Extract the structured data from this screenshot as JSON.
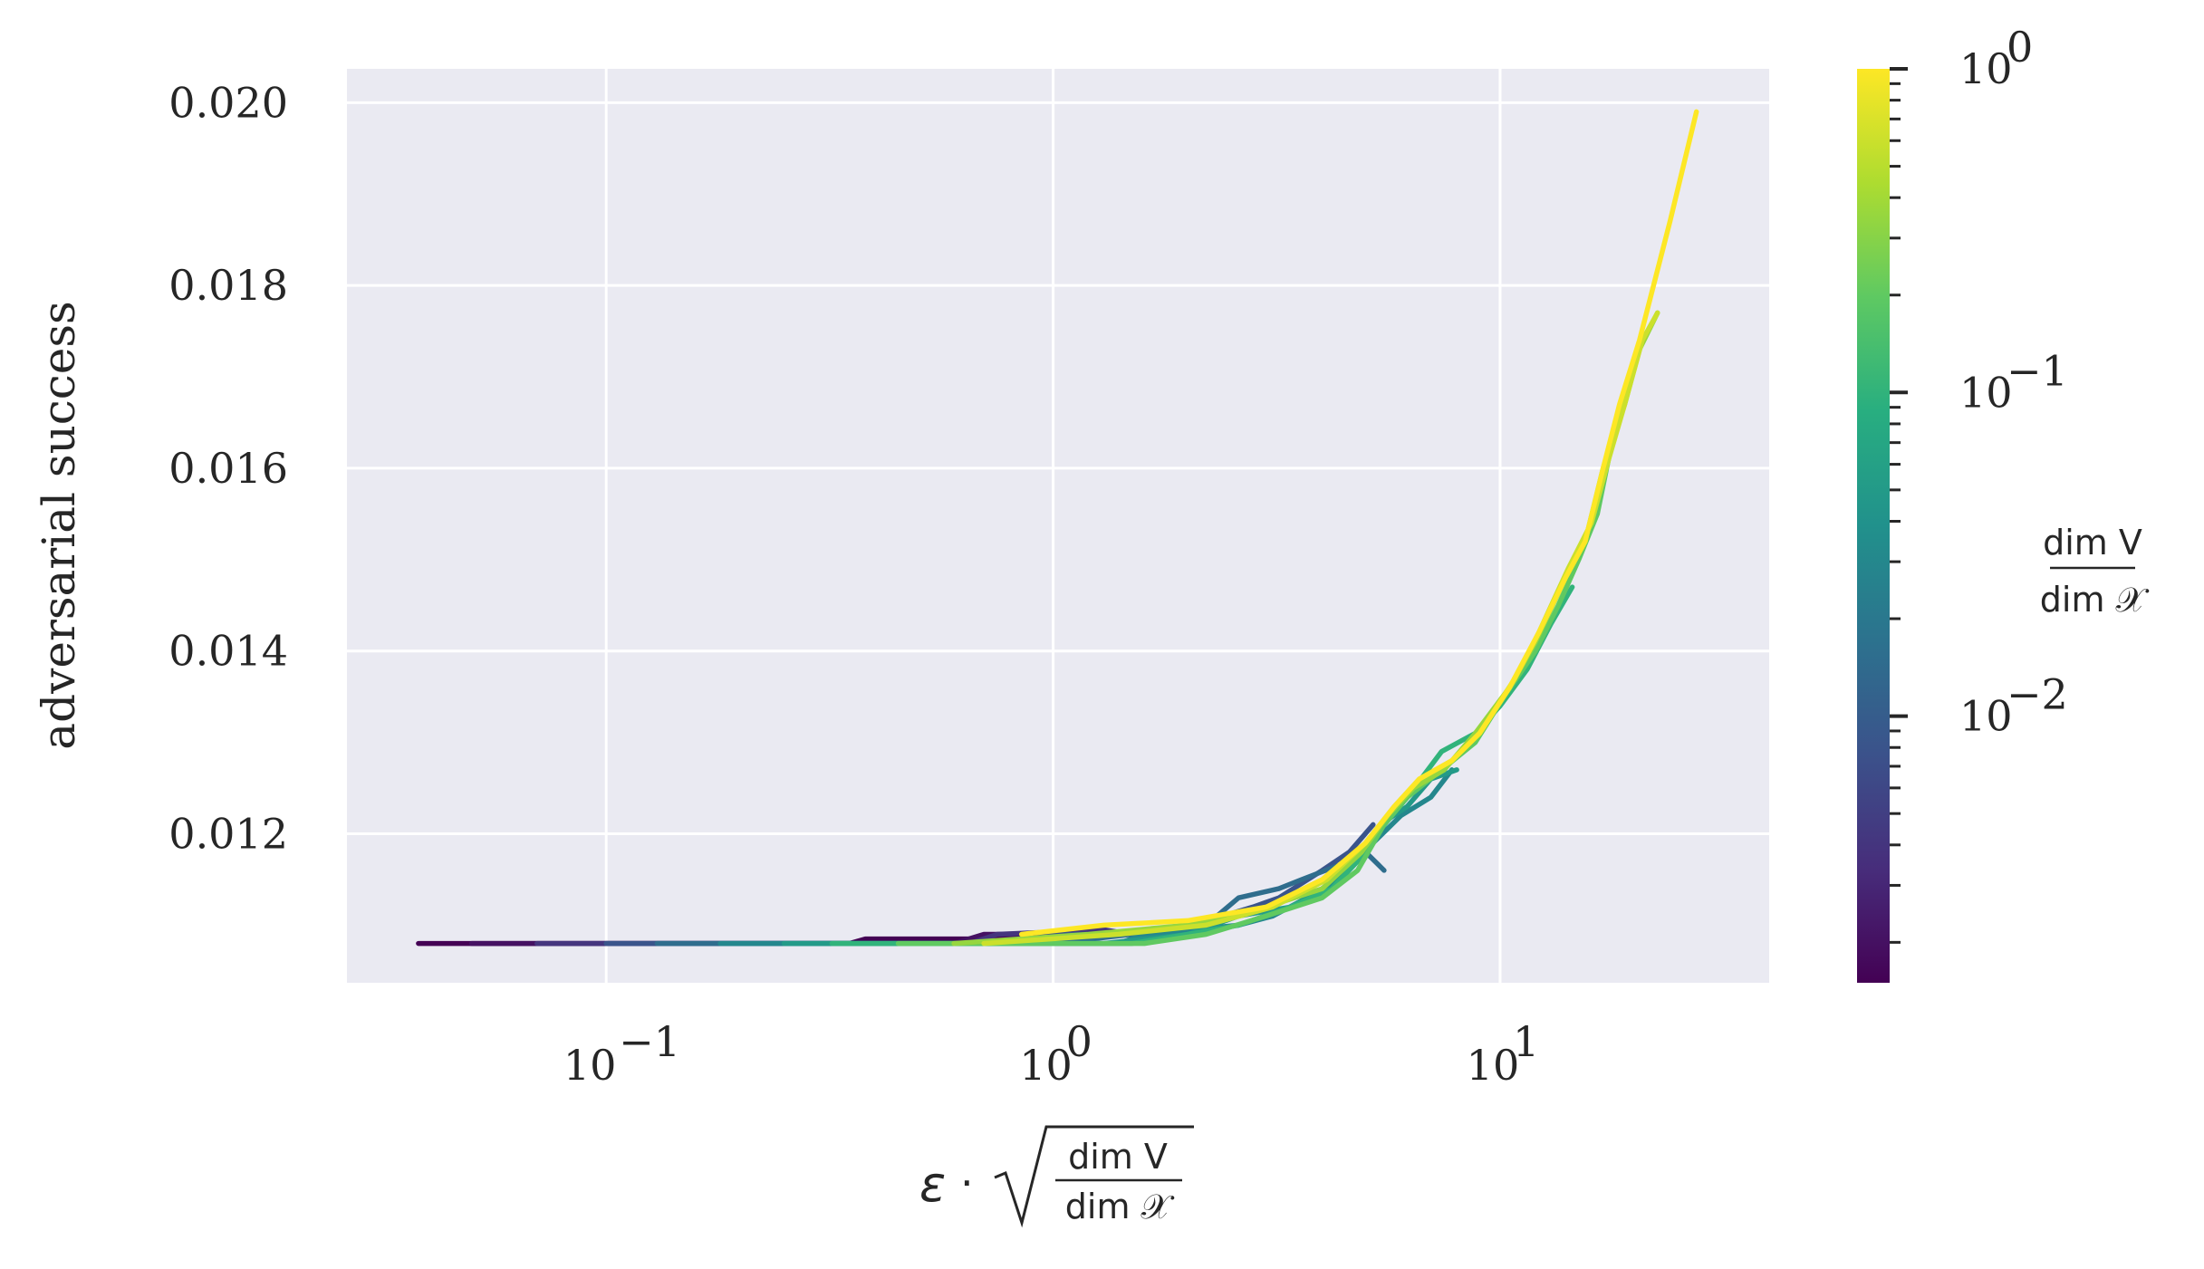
{
  "chart_data": {
    "type": "line",
    "title": "",
    "xlabel_parts": {
      "epsilon": "ε",
      "dot": "·",
      "frac_num": "dim V",
      "frac_den": "dim 𝒳"
    },
    "ylabel": "adversarial success",
    "xscale": "log",
    "xlim": [
      0.0263,
      40
    ],
    "ylim": [
      0.01037,
      0.02037
    ],
    "xticks": [
      {
        "value": 0.1,
        "base": "10",
        "exp": "−1"
      },
      {
        "value": 1,
        "base": "10",
        "exp": "0"
      },
      {
        "value": 10,
        "base": "10",
        "exp": "1"
      }
    ],
    "yticks": [
      0.012,
      0.014,
      0.016,
      0.018,
      0.02
    ],
    "ytick_labels": [
      "0.012",
      "0.014",
      "0.016",
      "0.018",
      "0.020"
    ],
    "grid": true,
    "background": "#eaeaf2",
    "grid_color": "#ffffff",
    "colorbar": {
      "label_num": "dim V",
      "label_den": "dim 𝒳",
      "scale": "log",
      "range": [
        0.0015,
        1
      ],
      "colormap": "viridis",
      "ticks": [
        {
          "value": 1,
          "base": "10",
          "exp": "0"
        },
        {
          "value": 0.1,
          "base": "10",
          "exp": "−1"
        },
        {
          "value": 0.01,
          "base": "10",
          "exp": "−2"
        }
      ]
    },
    "series": [
      {
        "ratio": 0.0015,
        "values": [
          [
            0.038,
            0.0108
          ],
          [
            0.35,
            0.0108
          ],
          [
            0.38,
            0.01085
          ],
          [
            0.9,
            0.01085
          ],
          [
            1.0,
            0.0109
          ]
        ]
      },
      {
        "ratio": 0.002,
        "values": [
          [
            0.05,
            0.0108
          ],
          [
            0.6,
            0.0108
          ],
          [
            0.7,
            0.0109
          ],
          [
            1.1,
            0.0109
          ]
        ]
      },
      {
        "ratio": 0.004,
        "values": [
          [
            0.07,
            0.0108
          ],
          [
            0.65,
            0.0108
          ],
          [
            0.75,
            0.0109
          ],
          [
            1.3,
            0.01095
          ],
          [
            1.5,
            0.0109
          ]
        ]
      },
      {
        "ratio": 0.008,
        "values": [
          [
            0.1,
            0.0108
          ],
          [
            0.8,
            0.0108
          ],
          [
            1.0,
            0.0109
          ],
          [
            1.6,
            0.0109
          ],
          [
            2.0,
            0.011
          ],
          [
            2.4,
            0.0111
          ],
          [
            2.8,
            0.0112
          ],
          [
            3.2,
            0.0113
          ],
          [
            4.0,
            0.0116
          ],
          [
            4.6,
            0.0118
          ],
          [
            5.2,
            0.0121
          ]
        ]
      },
      {
        "ratio": 0.015,
        "values": [
          [
            0.13,
            0.0108
          ],
          [
            1.0,
            0.0108
          ],
          [
            1.5,
            0.0109
          ],
          [
            2.2,
            0.011
          ],
          [
            2.6,
            0.0113
          ],
          [
            3.2,
            0.0114
          ],
          [
            3.6,
            0.0115
          ],
          [
            4.6,
            0.0117
          ],
          [
            5.0,
            0.0118
          ],
          [
            5.5,
            0.0116
          ]
        ]
      },
      {
        "ratio": 0.03,
        "values": [
          [
            0.18,
            0.0108
          ],
          [
            1.4,
            0.0108
          ],
          [
            1.6,
            0.0109
          ],
          [
            2.6,
            0.011
          ],
          [
            3.1,
            0.0111
          ],
          [
            3.7,
            0.0113
          ],
          [
            4.4,
            0.0115
          ],
          [
            5.2,
            0.0119
          ],
          [
            6.0,
            0.0122
          ],
          [
            7.0,
            0.0124
          ],
          [
            7.8,
            0.0127
          ]
        ]
      },
      {
        "ratio": 0.05,
        "values": [
          [
            0.25,
            0.0108
          ],
          [
            1.3,
            0.0108
          ],
          [
            2.0,
            0.0109
          ],
          [
            2.6,
            0.0111
          ],
          [
            3.4,
            0.0112
          ],
          [
            4.0,
            0.0114
          ],
          [
            4.8,
            0.0117
          ],
          [
            5.4,
            0.0121
          ],
          [
            6.2,
            0.0123
          ],
          [
            7.0,
            0.0126
          ],
          [
            8.0,
            0.0127
          ]
        ]
      },
      {
        "ratio": 0.1,
        "values": [
          [
            0.32,
            0.0108
          ],
          [
            1.5,
            0.0108
          ],
          [
            2.0,
            0.0109
          ],
          [
            2.6,
            0.011
          ],
          [
            3.4,
            0.0112
          ],
          [
            4.2,
            0.0114
          ],
          [
            4.8,
            0.0117
          ],
          [
            5.3,
            0.012
          ],
          [
            6.2,
            0.0124
          ],
          [
            7.4,
            0.0129
          ],
          [
            8.8,
            0.0131
          ],
          [
            10.0,
            0.0134
          ],
          [
            11.5,
            0.0138
          ],
          [
            13.0,
            0.0143
          ],
          [
            14.5,
            0.0147
          ]
        ]
      },
      {
        "ratio": 0.2,
        "values": [
          [
            0.45,
            0.0108
          ],
          [
            1.6,
            0.0108
          ],
          [
            2.2,
            0.0109
          ],
          [
            3.0,
            0.0111
          ],
          [
            4.0,
            0.0113
          ],
          [
            4.8,
            0.0116
          ],
          [
            5.5,
            0.0121
          ],
          [
            6.2,
            0.0124
          ],
          [
            7.4,
            0.0127
          ],
          [
            8.8,
            0.013
          ],
          [
            10.2,
            0.0135
          ],
          [
            12.0,
            0.014
          ],
          [
            13.5,
            0.0145
          ],
          [
            15.0,
            0.015
          ],
          [
            16.5,
            0.0155
          ],
          [
            18.0,
            0.0164
          ]
        ]
      },
      {
        "ratio": 0.35,
        "values": [
          [
            0.6,
            0.0108
          ],
          [
            1.2,
            0.0109
          ],
          [
            2.0,
            0.011
          ],
          [
            3.0,
            0.0112
          ],
          [
            4.0,
            0.0114
          ],
          [
            4.9,
            0.0118
          ],
          [
            5.6,
            0.0122
          ],
          [
            6.4,
            0.0125
          ],
          [
            7.5,
            0.0127
          ],
          [
            8.8,
            0.0131
          ],
          [
            10.5,
            0.0136
          ],
          [
            12.0,
            0.0141
          ],
          [
            14.0,
            0.0148
          ],
          [
            15.5,
            0.0152
          ],
          [
            17.0,
            0.016
          ],
          [
            19.0,
            0.0167
          ],
          [
            20.5,
            0.0173
          ],
          [
            22.5,
            0.0177
          ]
        ]
      },
      {
        "ratio": 0.6,
        "values": [
          [
            0.7,
            0.0108
          ],
          [
            1.4,
            0.0109
          ],
          [
            2.2,
            0.011
          ],
          [
            3.1,
            0.0112
          ],
          [
            4.1,
            0.0115
          ],
          [
            5.0,
            0.0119
          ],
          [
            5.8,
            0.0123
          ],
          [
            6.6,
            0.0126
          ],
          [
            7.8,
            0.0128
          ],
          [
            9.0,
            0.0131
          ],
          [
            10.8,
            0.0137
          ],
          [
            12.2,
            0.0142
          ],
          [
            14.2,
            0.0149
          ],
          [
            16.0,
            0.0154
          ],
          [
            17.5,
            0.0161
          ],
          [
            19.0,
            0.0167
          ],
          [
            20.8,
            0.0174
          ],
          [
            22.5,
            0.0177
          ]
        ]
      },
      {
        "ratio": 1.0,
        "values": [
          [
            0.85,
            0.0109
          ],
          [
            1.3,
            0.011
          ],
          [
            2.0,
            0.01105
          ],
          [
            3.0,
            0.0112
          ],
          [
            4.0,
            0.0115
          ],
          [
            5.0,
            0.0119
          ],
          [
            5.8,
            0.0123
          ],
          [
            6.6,
            0.0126
          ],
          [
            7.8,
            0.0128
          ],
          [
            9.0,
            0.0131
          ],
          [
            10.5,
            0.0136
          ],
          [
            12.2,
            0.0142
          ],
          [
            14.0,
            0.0148
          ],
          [
            15.5,
            0.0152
          ],
          [
            17.0,
            0.016
          ],
          [
            18.5,
            0.0167
          ],
          [
            20.5,
            0.0174
          ],
          [
            24.0,
            0.0187
          ],
          [
            27.5,
            0.0199
          ]
        ]
      }
    ]
  }
}
